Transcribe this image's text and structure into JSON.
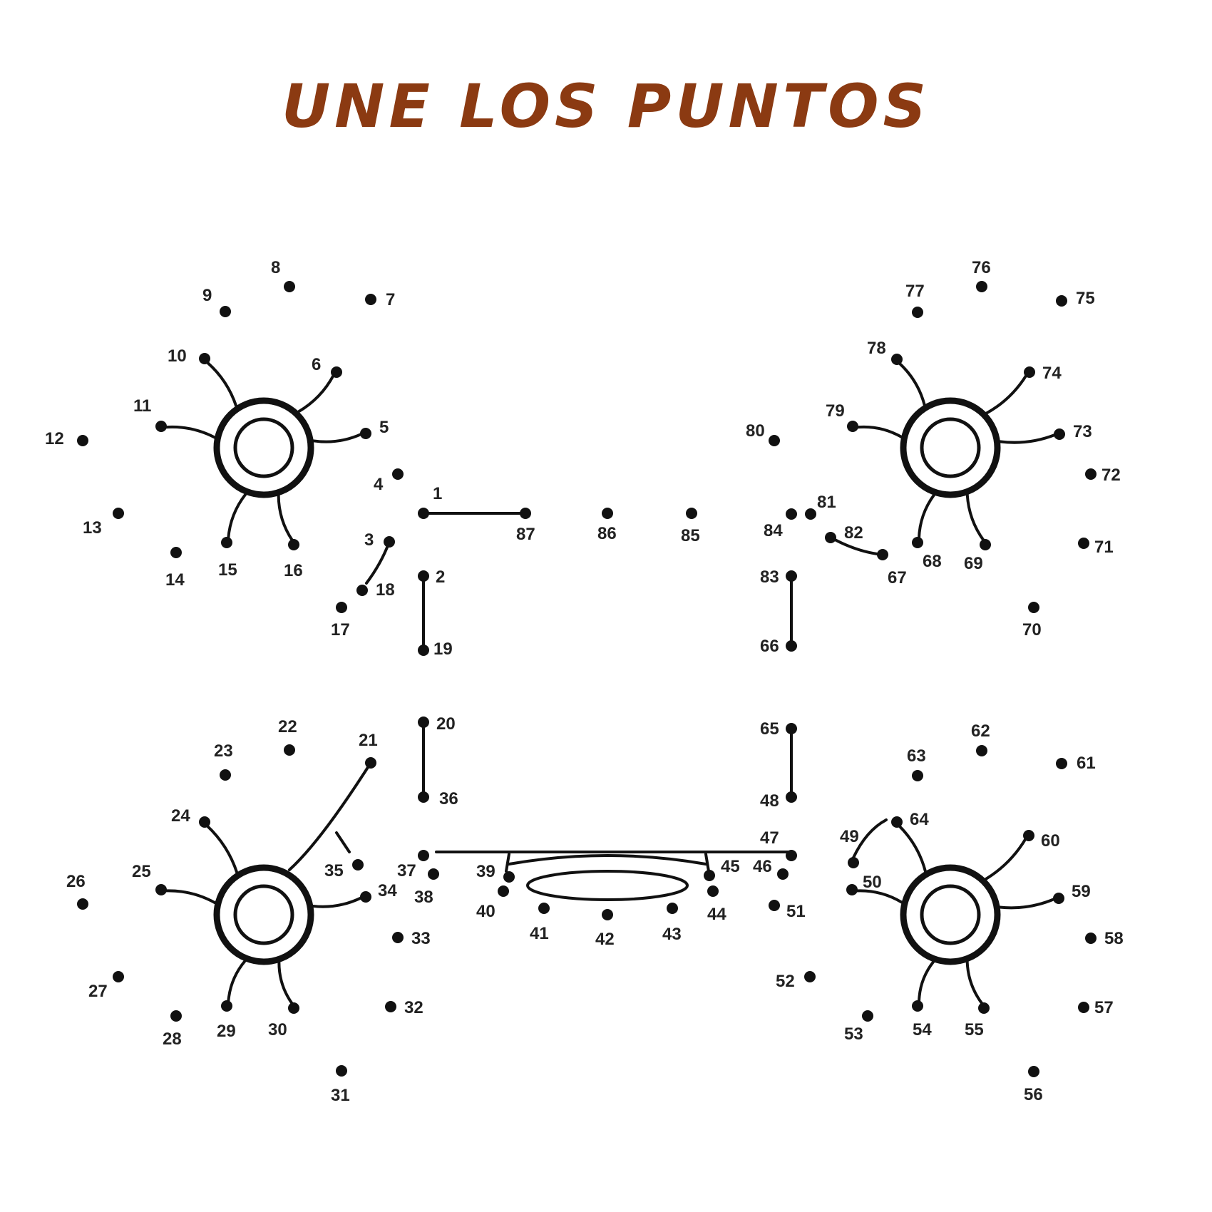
{
  "title": "UNE LOS PUNTOS",
  "colors": {
    "title": "#8b3a12",
    "ink": "#111111"
  },
  "puzzle": {
    "dots": [
      {
        "n": "1"
      },
      {
        "n": "2"
      },
      {
        "n": "3"
      },
      {
        "n": "4"
      },
      {
        "n": "5"
      },
      {
        "n": "6"
      },
      {
        "n": "7"
      },
      {
        "n": "8"
      },
      {
        "n": "9"
      },
      {
        "n": "10"
      },
      {
        "n": "11"
      },
      {
        "n": "12"
      },
      {
        "n": "13"
      },
      {
        "n": "14"
      },
      {
        "n": "15"
      },
      {
        "n": "16"
      },
      {
        "n": "17"
      },
      {
        "n": "18"
      },
      {
        "n": "19"
      },
      {
        "n": "20"
      },
      {
        "n": "21"
      },
      {
        "n": "22"
      },
      {
        "n": "23"
      },
      {
        "n": "24"
      },
      {
        "n": "25"
      },
      {
        "n": "26"
      },
      {
        "n": "27"
      },
      {
        "n": "28"
      },
      {
        "n": "29"
      },
      {
        "n": "30"
      },
      {
        "n": "31"
      },
      {
        "n": "32"
      },
      {
        "n": "33"
      },
      {
        "n": "34"
      },
      {
        "n": "35"
      },
      {
        "n": "36"
      },
      {
        "n": "37"
      },
      {
        "n": "38"
      },
      {
        "n": "39"
      },
      {
        "n": "40"
      },
      {
        "n": "41"
      },
      {
        "n": "42"
      },
      {
        "n": "43"
      },
      {
        "n": "44"
      },
      {
        "n": "45"
      },
      {
        "n": "46"
      },
      {
        "n": "47"
      },
      {
        "n": "48"
      },
      {
        "n": "49"
      },
      {
        "n": "50"
      },
      {
        "n": "51"
      },
      {
        "n": "52"
      },
      {
        "n": "53"
      },
      {
        "n": "54"
      },
      {
        "n": "55"
      },
      {
        "n": "56"
      },
      {
        "n": "57"
      },
      {
        "n": "58"
      },
      {
        "n": "59"
      },
      {
        "n": "60"
      },
      {
        "n": "61"
      },
      {
        "n": "62"
      },
      {
        "n": "63"
      },
      {
        "n": "64"
      },
      {
        "n": "65"
      },
      {
        "n": "66"
      },
      {
        "n": "67"
      },
      {
        "n": "68"
      },
      {
        "n": "69"
      },
      {
        "n": "70"
      },
      {
        "n": "71"
      },
      {
        "n": "72"
      },
      {
        "n": "73"
      },
      {
        "n": "74"
      },
      {
        "n": "75"
      },
      {
        "n": "76"
      },
      {
        "n": "77"
      },
      {
        "n": "78"
      },
      {
        "n": "79"
      },
      {
        "n": "80"
      },
      {
        "n": "81"
      },
      {
        "n": "82"
      },
      {
        "n": "83"
      },
      {
        "n": "84"
      },
      {
        "n": "85"
      },
      {
        "n": "86"
      },
      {
        "n": "87"
      }
    ]
  }
}
